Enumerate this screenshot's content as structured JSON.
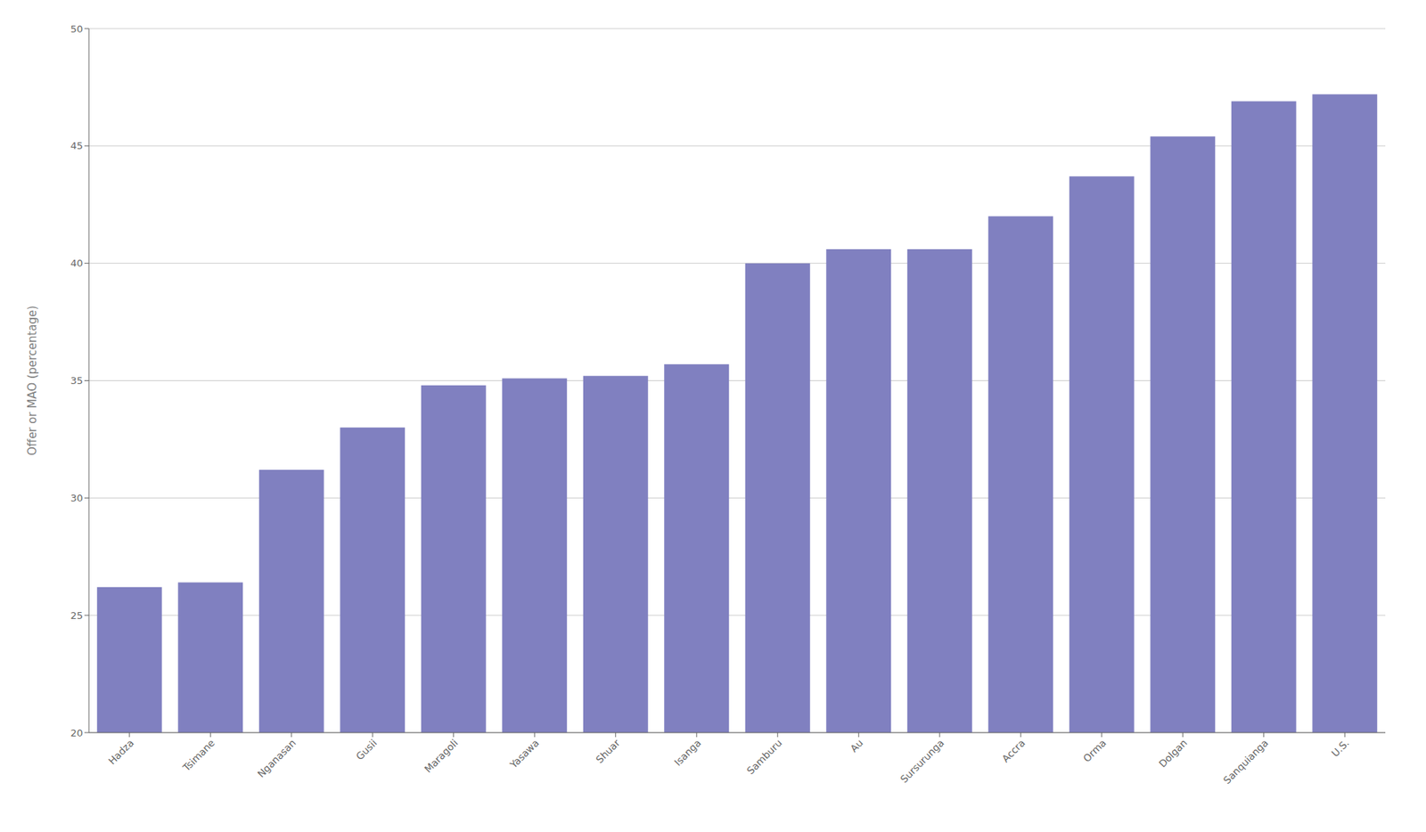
{
  "chart_data": {
    "type": "bar",
    "categories": [
      "Hadza",
      "Tsimane",
      "Nganasan",
      "Gusii",
      "Maragoli",
      "Yasawa",
      "Shuar",
      "Isanga",
      "Samburu",
      "Au",
      "Sursurunga",
      "Accra",
      "Orma",
      "Dolgan",
      "Sanquianga",
      "U.S."
    ],
    "values": [
      26.2,
      26.4,
      31.2,
      33.0,
      34.8,
      35.1,
      35.2,
      35.7,
      40.0,
      40.6,
      40.6,
      42.0,
      43.7,
      45.4,
      46.9,
      47.2
    ],
    "color": "#8080c0",
    "ylabel": "Offer or MAO (percentage)",
    "ylim": [
      20,
      50
    ],
    "yticks": [
      20,
      25,
      30,
      35,
      40,
      45,
      50
    ],
    "grid": true
  }
}
